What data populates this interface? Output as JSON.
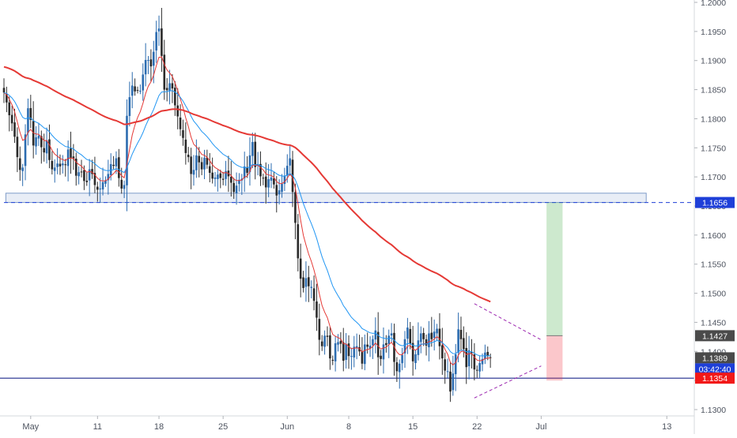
{
  "chart_data": {
    "type": "candlestick",
    "title": "",
    "xlabel": "",
    "ylabel": "",
    "ylim": [
      1.127,
      1.201
    ],
    "grid": false,
    "y_ticks": [
      "1.2000",
      "1.1950",
      "1.1900",
      "1.1850",
      "1.1800",
      "1.1750",
      "1.1700",
      "1.1650",
      "1.1600",
      "1.1550",
      "1.1500",
      "1.1450",
      "1.1400",
      "1.1350",
      "1.1300"
    ],
    "x_ticks": [
      {
        "label": "May",
        "bar": 10
      },
      {
        "label": "11",
        "bar": 35
      },
      {
        "label": "18",
        "bar": 58
      },
      {
        "label": "25",
        "bar": 82
      },
      {
        "label": "Jun",
        "bar": 106
      },
      {
        "label": "8",
        "bar": 129
      },
      {
        "label": "15",
        "bar": 153
      },
      {
        "label": "22",
        "bar": 177
      },
      {
        "label": "Jul",
        "bar": 201
      },
      {
        "label": "13",
        "bar": 248
      }
    ],
    "price_labels": [
      {
        "text": "1.1656",
        "value": 1.1656,
        "color": "#1e3fd8"
      },
      {
        "text": "1.1427",
        "value": 1.1427,
        "color": "#4a4a4a"
      },
      {
        "text": "1.1389",
        "value": 1.1389,
        "color": "#4a4a4a"
      },
      {
        "text": "03:42:40",
        "value": 1.137,
        "color": "#1e3fd8"
      },
      {
        "text": "1.1354",
        "value": 1.1354,
        "color": "#f21818"
      }
    ],
    "candle_color": "#2c6cb0",
    "ohlc_close": [
      1.1845,
      1.1828,
      1.1806,
      1.1792,
      1.1769,
      1.1734,
      1.1712,
      1.1716,
      1.1773,
      1.1818,
      1.1798,
      1.1754,
      1.1768,
      1.1771,
      1.1751,
      1.1742,
      1.1763,
      1.1729,
      1.1713,
      1.1716,
      1.1723,
      1.1718,
      1.1723,
      1.1721,
      1.1747,
      1.1733,
      1.1731,
      1.1702,
      1.1708,
      1.1709,
      1.1693,
      1.1691,
      1.1713,
      1.1705,
      1.1686,
      1.1678,
      1.168,
      1.1691,
      1.1694,
      1.1705,
      1.1722,
      1.1719,
      1.1732,
      1.1698,
      1.168,
      1.1686,
      1.1805,
      1.1837,
      1.1857,
      1.1847,
      1.1849,
      1.1848,
      1.1876,
      1.1901,
      1.1901,
      1.189,
      1.1915,
      1.1949,
      1.1955,
      1.1908,
      1.185,
      1.1849,
      1.1861,
      1.1852,
      1.1823,
      1.1804,
      1.1782,
      1.1767,
      1.1741,
      1.1734,
      1.1705,
      1.1712,
      1.1737,
      1.1725,
      1.1713,
      1.1733,
      1.1721,
      1.1707,
      1.1697,
      1.1699,
      1.1704,
      1.1698,
      1.1695,
      1.171,
      1.1701,
      1.169,
      1.1674,
      1.1685,
      1.1695,
      1.1697,
      1.1718,
      1.1707,
      1.1737,
      1.176,
      1.1717,
      1.1722,
      1.1701,
      1.1698,
      1.1682,
      1.1696,
      1.1699,
      1.1687,
      1.1668,
      1.1677,
      1.1688,
      1.1702,
      1.1719,
      1.1732,
      1.1674,
      1.1621,
      1.156,
      1.1525,
      1.1509,
      1.1526,
      1.1512,
      1.1511,
      1.1487,
      1.1458,
      1.142,
      1.1409,
      1.1427,
      1.1425,
      1.1388,
      1.1384,
      1.1414,
      1.1416,
      1.1413,
      1.1384,
      1.1412,
      1.1392,
      1.1392,
      1.1408,
      1.1409,
      1.14,
      1.1379,
      1.1412,
      1.1408,
      1.141,
      1.1421,
      1.1436,
      1.139,
      1.1387,
      1.1412,
      1.1411,
      1.1427,
      1.1431,
      1.1382,
      1.1366,
      1.1379,
      1.1394,
      1.1421,
      1.1441,
      1.1413,
      1.1383,
      1.1395,
      1.1419,
      1.1431,
      1.1421,
      1.141,
      1.1431,
      1.1421,
      1.1434,
      1.1439,
      1.1409,
      1.1388,
      1.1367,
      1.1366,
      1.1331,
      1.1362,
      1.1395,
      1.1438,
      1.1421,
      1.1404,
      1.1373,
      1.1402,
      1.1397,
      1.1369,
      1.1367,
      1.138,
      1.1387,
      1.1398,
      1.1392,
      1.1389
    ],
    "moving_averages": [
      {
        "color": "#e53935",
        "thickness": 1,
        "period": 8
      },
      {
        "color": "#2196f3",
        "thickness": 1,
        "period": 21
      },
      {
        "color": "#e53935",
        "thickness": 2,
        "period": 100,
        "seed": 1.189
      }
    ],
    "support_zone": {
      "low": 1.1656,
      "high": 1.1672,
      "from_bar": 1,
      "to_bar": 240
    },
    "resistance_dashed": {
      "value": 1.1656,
      "from_bar": 0
    },
    "support_line": {
      "value": 1.1354,
      "color": "#1e2a8c"
    },
    "triangle": {
      "upper": [
        [
          176,
          1.1482
        ],
        [
          201,
          1.142
        ]
      ],
      "lower": [
        [
          176,
          1.132
        ],
        [
          201,
          1.1375
        ]
      ],
      "color": "#9c27b0"
    },
    "position": {
      "bar_from": 203,
      "bar_to": 209,
      "entry": 1.1427,
      "target": 1.1656,
      "stop": 1.1354
    }
  }
}
